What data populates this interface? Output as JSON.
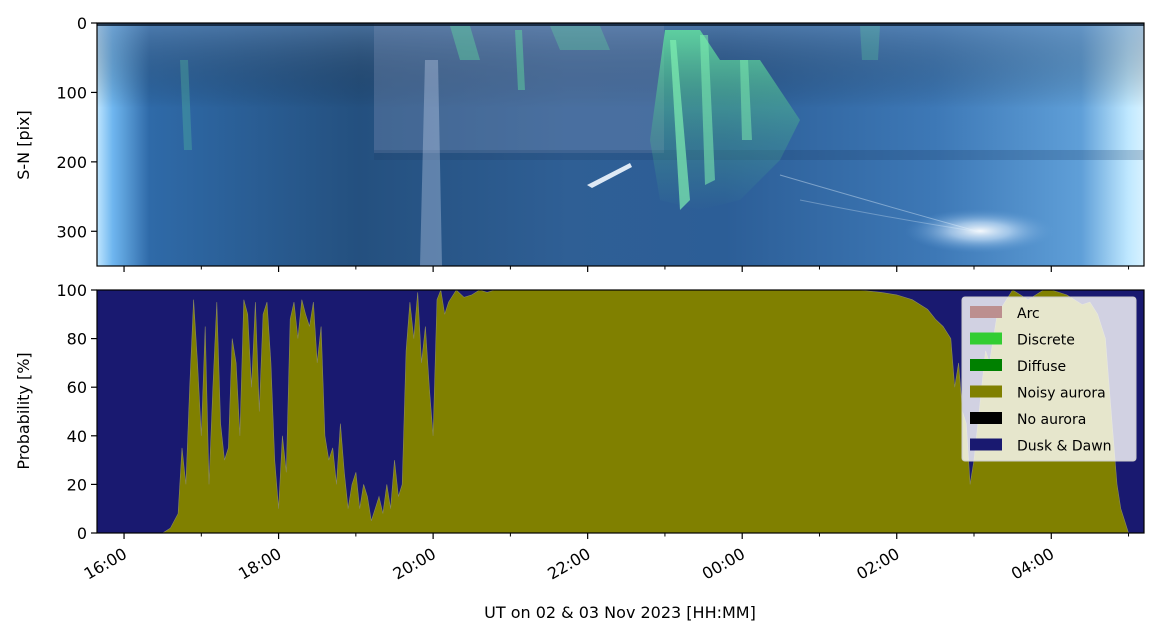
{
  "chart_data": [
    {
      "type": "heatmap",
      "description_kind": "keogram",
      "ylabel": "S-N [pix]",
      "yticks": [
        0,
        100,
        200,
        300
      ],
      "ylim": [
        350,
        0
      ],
      "colors": {
        "base": "#2d5f99",
        "edge_glow": "#9fdcff",
        "aurora": "#5fd39a",
        "dark_band": "#1f3f6a"
      }
    },
    {
      "type": "area",
      "stacked": true,
      "ylabel": "Probability [%]",
      "xlabel": "UT on 02 & 03 Nov 2023 [HH:MM]",
      "yticks": [
        0,
        20,
        40,
        60,
        80,
        100
      ],
      "ylim": [
        0,
        100
      ],
      "xticks": [
        "16:00",
        "18:00",
        "20:00",
        "22:00",
        "00:00",
        "02:00",
        "04:00"
      ],
      "x_unit": "hours UT",
      "xlim": [
        15.65,
        29.2
      ],
      "legend_position": "top-right",
      "series": [
        {
          "name": "Arc",
          "color": "#bc8f8f"
        },
        {
          "name": "Discrete",
          "color": "#32cd32"
        },
        {
          "name": "Diffuse",
          "color": "#008000"
        },
        {
          "name": "Noisy aurora",
          "color": "#808000",
          "x": [
            16.5,
            16.6,
            16.7,
            16.75,
            16.8,
            16.85,
            16.9,
            16.95,
            17.0,
            17.05,
            17.1,
            17.15,
            17.2,
            17.25,
            17.3,
            17.35,
            17.4,
            17.45,
            17.5,
            17.55,
            17.6,
            17.65,
            17.7,
            17.75,
            17.8,
            17.85,
            17.9,
            17.95,
            18.0,
            18.05,
            18.1,
            18.15,
            18.2,
            18.25,
            18.3,
            18.35,
            18.4,
            18.45,
            18.5,
            18.55,
            18.6,
            18.65,
            18.7,
            18.75,
            18.8,
            18.85,
            18.9,
            18.95,
            19.0,
            19.05,
            19.1,
            19.15,
            19.2,
            19.25,
            19.3,
            19.35,
            19.4,
            19.45,
            19.5,
            19.55,
            19.6,
            19.65,
            19.7,
            19.75,
            19.8,
            19.85,
            19.9,
            19.95,
            20.0,
            20.05,
            20.1,
            20.15,
            20.2,
            20.3,
            20.4,
            20.5,
            20.6,
            20.7,
            20.8,
            21.0,
            22.0,
            24.0,
            25.5,
            25.8,
            26.0,
            26.2,
            26.4,
            26.5,
            26.6,
            26.7,
            26.75,
            26.8,
            26.85,
            26.9,
            26.95,
            27.0,
            27.05,
            27.1,
            27.15,
            27.2,
            27.3,
            27.4,
            27.5,
            27.6,
            27.7,
            27.8,
            27.9,
            28.0,
            28.1,
            28.2,
            28.3,
            28.4,
            28.5,
            28.6,
            28.7,
            28.75,
            28.8,
            28.85,
            28.9,
            28.95,
            29.0
          ],
          "values": [
            0,
            2,
            8,
            35,
            20,
            60,
            96,
            70,
            40,
            85,
            20,
            60,
            95,
            45,
            30,
            35,
            80,
            70,
            40,
            96,
            90,
            60,
            95,
            50,
            90,
            95,
            70,
            30,
            10,
            40,
            25,
            88,
            95,
            80,
            96,
            90,
            85,
            95,
            70,
            85,
            40,
            30,
            35,
            20,
            45,
            25,
            10,
            20,
            25,
            10,
            20,
            15,
            5,
            10,
            15,
            8,
            20,
            10,
            30,
            15,
            20,
            75,
            95,
            80,
            99,
            70,
            85,
            60,
            40,
            96,
            100,
            90,
            95,
            100,
            97,
            98,
            100,
            99,
            100,
            100,
            100,
            100,
            100,
            99,
            98,
            96,
            92,
            88,
            85,
            80,
            60,
            70,
            50,
            45,
            20,
            30,
            45,
            60,
            75,
            70,
            90,
            95,
            100,
            98,
            96,
            98,
            100,
            100,
            99,
            98,
            96,
            94,
            95,
            90,
            80,
            60,
            40,
            20,
            10,
            5,
            0
          ]
        },
        {
          "name": "No aurora",
          "color": "#000000"
        },
        {
          "name": "Dusk & Dawn",
          "color": "#191970"
        }
      ]
    }
  ]
}
